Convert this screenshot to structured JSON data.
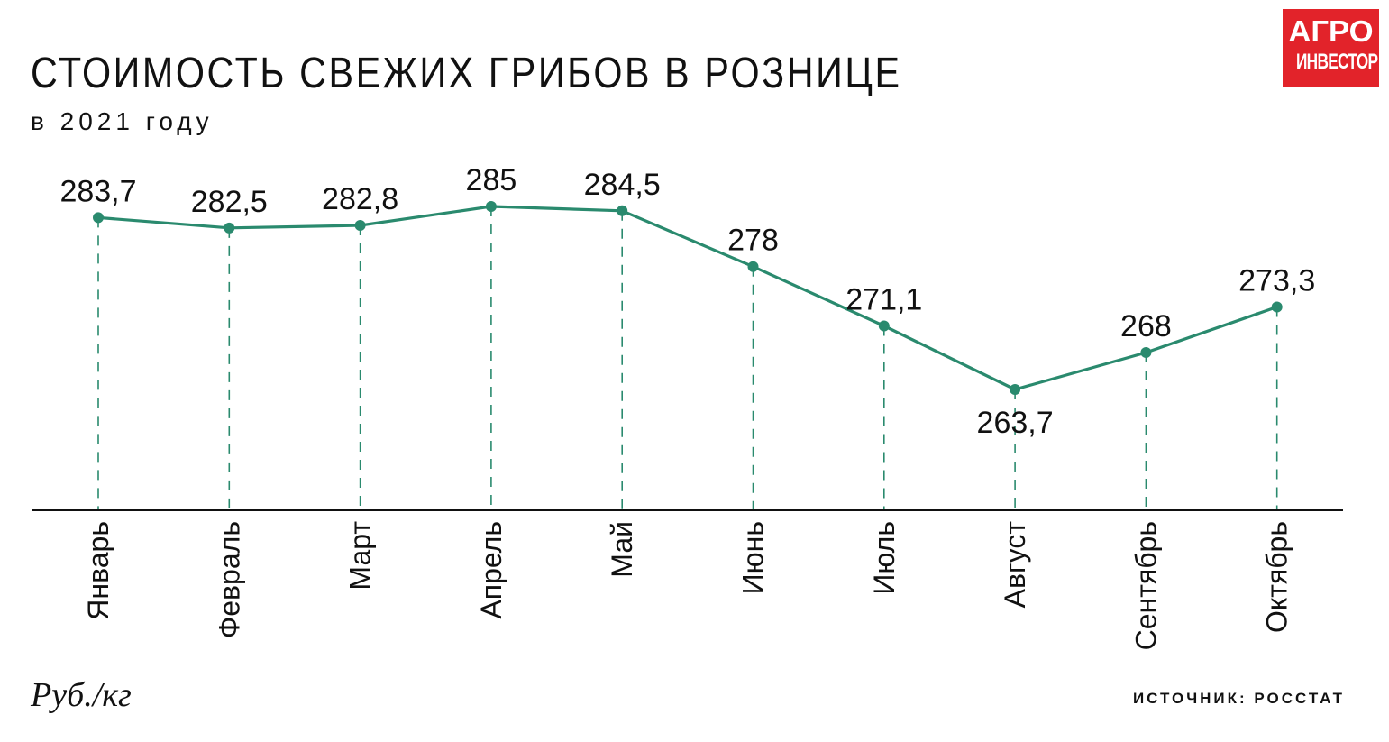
{
  "header": {
    "title": "СТОИМОСТЬ СВЕЖИХ ГРИБОВ В РОЗНИЦЕ",
    "subtitle": "в 2021 году"
  },
  "logo": {
    "line1": "АГРО",
    "line2": "ИНВЕСТОР",
    "color": "#e2232a"
  },
  "footer": {
    "unit": "Руб./кг",
    "source": "ИСТОЧНИК: РОССТАТ"
  },
  "chart_data": {
    "type": "line",
    "categories": [
      "Январь",
      "Февраль",
      "Март",
      "Апрель",
      "Май",
      "Июнь",
      "Июль",
      "Август",
      "Сентябрь",
      "Октябрь"
    ],
    "values": [
      283.7,
      282.5,
      282.8,
      285,
      284.5,
      278,
      271.1,
      263.7,
      268,
      273.3
    ],
    "value_labels": [
      "283,7",
      "282,5",
      "282,8",
      "285",
      "284,5",
      "278",
      "271,1",
      "263,7",
      "268",
      "273,3"
    ],
    "label_positions": [
      "above",
      "above",
      "above",
      "above",
      "above",
      "above",
      "above",
      "below",
      "above",
      "above"
    ],
    "line_color": "#2a8a6e",
    "grid": "dashed vertical drop lines",
    "legend": "none"
  }
}
